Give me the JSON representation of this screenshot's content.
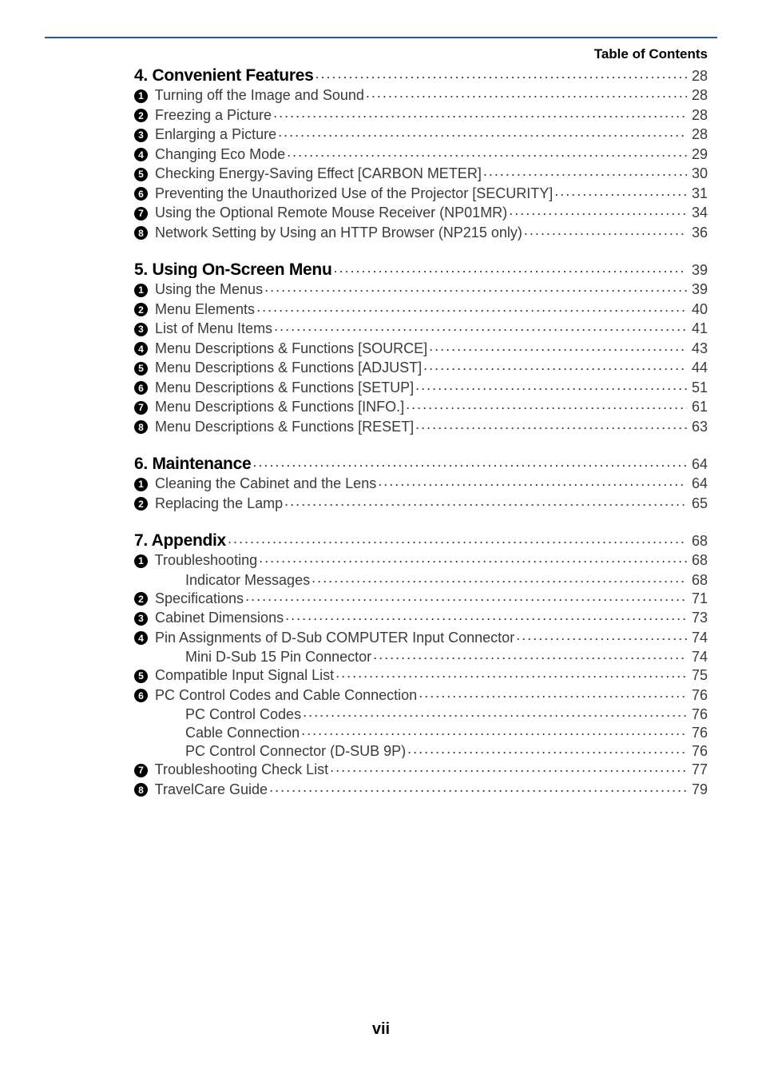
{
  "header": {
    "title": "Table of Contents"
  },
  "sections": [
    {
      "heading": {
        "label": "4. Convenient Features",
        "page": "28"
      },
      "items": [
        {
          "num": "1",
          "label": "Turning off the Image and Sound",
          "page": "28"
        },
        {
          "num": "2",
          "label": "Freezing a Picture",
          "page": "28"
        },
        {
          "num": "3",
          "label": "Enlarging a Picture",
          "page": "28"
        },
        {
          "num": "4",
          "label": "Changing Eco Mode",
          "page": "29"
        },
        {
          "num": "5",
          "label": "Checking Energy-Saving Effect [CARBON METER]",
          "page": "30"
        },
        {
          "num": "6",
          "label": "Preventing the Unauthorized Use of the Projector [SECURITY]",
          "page": "31"
        },
        {
          "num": "7",
          "label": "Using the Optional Remote Mouse Receiver (NP01MR)",
          "page": "34"
        },
        {
          "num": "8",
          "label": "Network Setting by Using an HTTP Browser (NP215 only)",
          "page": "36"
        }
      ]
    },
    {
      "heading": {
        "label": "5. Using On-Screen Menu",
        "page": "39"
      },
      "items": [
        {
          "num": "1",
          "label": "Using the Menus",
          "page": "39"
        },
        {
          "num": "2",
          "label": "Menu Elements",
          "page": "40"
        },
        {
          "num": "3",
          "label": "List of Menu Items",
          "page": "41"
        },
        {
          "num": "4",
          "label": "Menu Descriptions & Functions [SOURCE]",
          "page": "43"
        },
        {
          "num": "5",
          "label": "Menu Descriptions & Functions [ADJUST]",
          "page": "44"
        },
        {
          "num": "6",
          "label": "Menu Descriptions & Functions [SETUP]",
          "page": "51"
        },
        {
          "num": "7",
          "label": "Menu Descriptions & Functions [INFO.]",
          "page": "61"
        },
        {
          "num": "8",
          "label": "Menu Descriptions & Functions [RESET]",
          "page": "63"
        }
      ]
    },
    {
      "heading": {
        "label": "6. Maintenance",
        "page": "64"
      },
      "items": [
        {
          "num": "1",
          "label": "Cleaning the Cabinet and the Lens",
          "page": "64"
        },
        {
          "num": "2",
          "label": "Replacing the Lamp",
          "page": "65"
        }
      ]
    },
    {
      "heading": {
        "label": "7. Appendix",
        "page": "68"
      },
      "items": [
        {
          "num": "1",
          "label": "Troubleshooting",
          "page": "68",
          "subs": [
            {
              "label": "Indicator Messages",
              "page": "68"
            }
          ]
        },
        {
          "num": "2",
          "label": "Specifications",
          "page": "71"
        },
        {
          "num": "3",
          "label": "Cabinet Dimensions",
          "page": "73"
        },
        {
          "num": "4",
          "label": "Pin Assignments of D-Sub COMPUTER Input Connector",
          "page": "74",
          "subs": [
            {
              "label": "Mini D-Sub 15 Pin Connector",
              "page": "74"
            }
          ]
        },
        {
          "num": "5",
          "label": "Compatible Input Signal List",
          "page": "75"
        },
        {
          "num": "6",
          "label": "PC Control Codes and Cable Connection",
          "page": "76",
          "subs": [
            {
              "label": "PC Control Codes",
              "page": "76"
            },
            {
              "label": "Cable Connection",
              "page": "76"
            },
            {
              "label": "PC Control Connector (D-SUB 9P)",
              "page": "76"
            }
          ]
        },
        {
          "num": "7",
          "label": "Troubleshooting Check List",
          "page": "77"
        },
        {
          "num": "8",
          "label": "TravelCare Guide",
          "page": "79"
        }
      ]
    }
  ],
  "footer": {
    "pagenum": "vii"
  }
}
